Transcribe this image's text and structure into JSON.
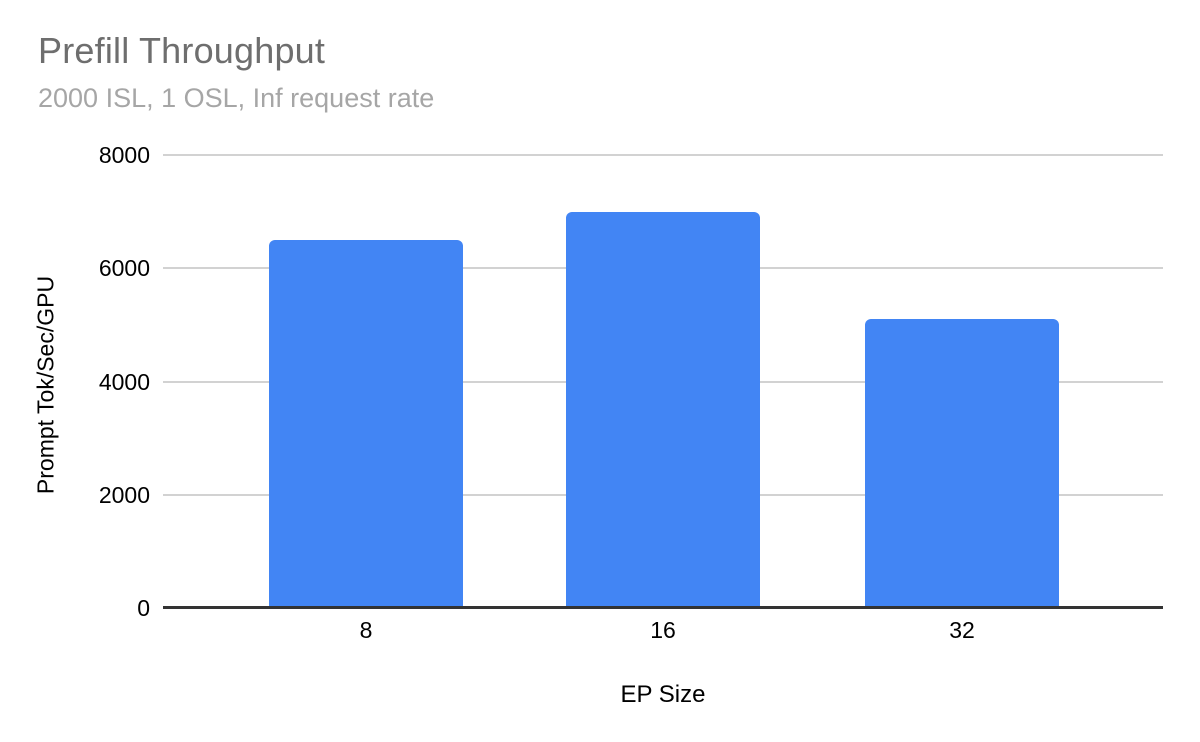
{
  "chart_data": {
    "type": "bar",
    "title": "Prefill Throughput",
    "subtitle": "2000 ISL, 1 OSL, Inf request rate",
    "categories": [
      "8",
      "16",
      "32"
    ],
    "series": [
      {
        "name": "Prompt Tok/Sec/GPU",
        "values": [
          6500,
          7000,
          5100
        ]
      }
    ],
    "xlabel": "EP Size",
    "ylabel": "Prompt Tok/Sec/GPU",
    "ylim": [
      0,
      8000
    ],
    "yticks": [
      0,
      2000,
      4000,
      6000,
      8000
    ],
    "grid": true,
    "legend": "none",
    "colors": {
      "bar": "#4285f4",
      "gridline": "#d2d2d2",
      "axis_line": "#333333",
      "title": "#6e6e6e",
      "subtitle": "#a6a6a6",
      "tick": "#000000",
      "background": "#ffffff"
    }
  }
}
